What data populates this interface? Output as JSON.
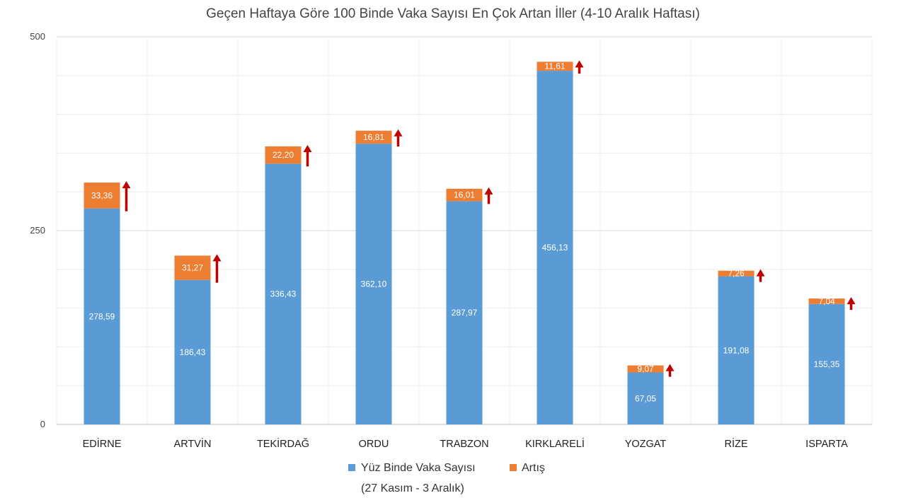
{
  "chart_data": {
    "type": "bar",
    "stacked": true,
    "title": "Geçen Haftaya Göre 100 Binde Vaka Sayısı En Çok Artan İller (4-10 Aralık Haftası)",
    "xlabel": "",
    "ylabel": "",
    "ylim": [
      0,
      500
    ],
    "yticks": [
      "0",
      "250",
      "500"
    ],
    "ytick_values": [
      0,
      250,
      500
    ],
    "grid": true,
    "legend_position": "bottom",
    "categories": [
      "EDİRNE",
      "ARTVİN",
      "TEKİRDAĞ",
      "ORDU",
      "TRABZON",
      "KIRKLARELİ",
      "YOZGAT",
      "RİZE",
      "ISPARTA"
    ],
    "series": [
      {
        "name": "Yüz Binde Vaka Sayısı",
        "name_line2": "(27 Kasım - 3 Aralık)",
        "color": "#5b9bd5",
        "values": [
          278.59,
          186.43,
          336.43,
          362.1,
          287.97,
          456.13,
          67.05,
          191.08,
          155.35
        ],
        "labels": [
          "278,59",
          "186,43",
          "336,43",
          "362,10",
          "287,97",
          "456,13",
          "67,05",
          "191,08",
          "155,35"
        ]
      },
      {
        "name": "Artış",
        "color": "#ed7d31",
        "values": [
          33.36,
          31.27,
          22.2,
          16.81,
          16.01,
          11.61,
          9.07,
          7.26,
          7.04
        ],
        "labels": [
          "33,36",
          "31,27",
          "22,20",
          "16,81",
          "16,01",
          "11,61",
          "9,07",
          "7,26",
          "7,04"
        ]
      }
    ],
    "arrow_color": "#c00000",
    "arrow_icon": "up-arrow-icon"
  }
}
